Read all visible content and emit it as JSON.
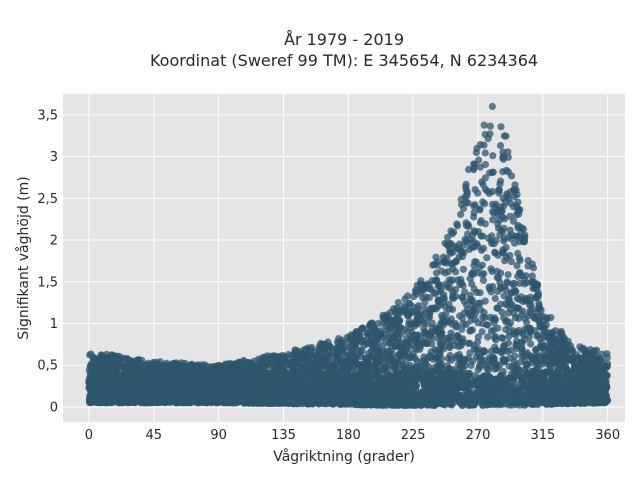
{
  "chart_data": {
    "type": "scatter",
    "title_line1": "År 1979 - 2019",
    "title_line2": "Koordinat (Sweref 99 TM): E 345654, N 6234364",
    "xlabel": "Vågriktning (grader)",
    "ylabel": "Signifikant våghöjd (m)",
    "xlim": [
      -18,
      372
    ],
    "ylim": [
      -0.18,
      3.75
    ],
    "x_ticks": [
      0,
      45,
      90,
      135,
      180,
      225,
      270,
      315,
      360
    ],
    "x_tick_labels": [
      "0",
      "45",
      "90",
      "135",
      "180",
      "225",
      "270",
      "315",
      "360"
    ],
    "y_ticks": [
      0,
      0.5,
      1,
      1.5,
      2,
      2.5,
      3,
      3.5
    ],
    "y_tick_labels": [
      "0",
      "0,5",
      "1",
      "1,5",
      "2",
      "2,5",
      "3",
      "3,5"
    ],
    "grid": true,
    "marker_color": "#2e566d",
    "point_density_envelope": {
      "description_units": "direction in degrees, height in metres",
      "direction": [
        0,
        20,
        45,
        90,
        135,
        180,
        200,
        225,
        245,
        260,
        270,
        280,
        290,
        300,
        315,
        335,
        360
      ],
      "height_max": [
        0.65,
        0.62,
        0.55,
        0.5,
        0.65,
        0.85,
        1.05,
        1.4,
        1.9,
        2.6,
        3.3,
        3.55,
        3.25,
        2.3,
        1.2,
        0.75,
        0.65
      ],
      "height_min": [
        0.05,
        0.05,
        0.05,
        0.05,
        0.04,
        0.03,
        0.02,
        0.02,
        0.02,
        0.02,
        0.02,
        0.02,
        0.02,
        0.02,
        0.03,
        0.04,
        0.05
      ]
    },
    "peak_direction": 280,
    "peak_height": 3.6
  }
}
